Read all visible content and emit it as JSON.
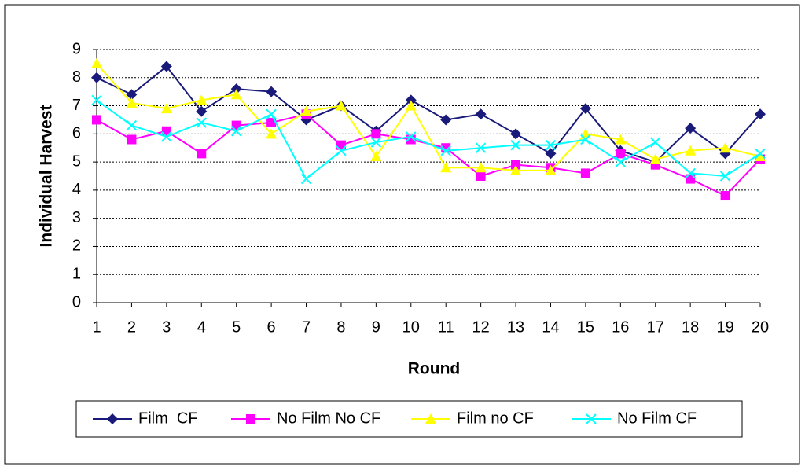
{
  "chart_data": {
    "type": "line",
    "x_label": "Round",
    "y_label": "Individual Harvest",
    "x": [
      1,
      2,
      3,
      4,
      5,
      6,
      7,
      8,
      9,
      10,
      11,
      12,
      13,
      14,
      15,
      16,
      17,
      18,
      19,
      20
    ],
    "xlim": [
      1,
      20
    ],
    "xticks": [
      1,
      2,
      3,
      4,
      5,
      6,
      7,
      8,
      9,
      10,
      11,
      12,
      13,
      14,
      15,
      16,
      17,
      18,
      19,
      20
    ],
    "ylim": [
      0,
      9
    ],
    "yticks": [
      0,
      1,
      2,
      3,
      4,
      5,
      6,
      7,
      8,
      9
    ],
    "grid": true,
    "legend": "bottom",
    "series": [
      {
        "name": "Film  CF",
        "color": "#1a1a7a",
        "marker": "diamond",
        "values": [
          8.0,
          7.4,
          8.4,
          6.8,
          7.6,
          7.5,
          6.5,
          7.0,
          6.1,
          7.2,
          6.5,
          6.7,
          6.0,
          5.3,
          6.9,
          5.4,
          5.0,
          6.2,
          5.3,
          6.7
        ]
      },
      {
        "name": "No Film No CF",
        "color": "#ff00ff",
        "marker": "square",
        "values": [
          6.5,
          5.8,
          6.1,
          5.3,
          6.3,
          6.4,
          6.7,
          5.6,
          6.0,
          5.8,
          5.5,
          4.5,
          4.9,
          4.8,
          4.6,
          5.3,
          4.9,
          4.4,
          3.8,
          5.1
        ]
      },
      {
        "name": "Film no CF",
        "color": "#ffff00",
        "marker": "triangle",
        "values": [
          8.5,
          7.1,
          6.9,
          7.2,
          7.4,
          6.0,
          6.8,
          7.0,
          5.2,
          7.0,
          4.8,
          4.8,
          4.7,
          4.7,
          6.0,
          5.8,
          5.1,
          5.4,
          5.5,
          5.2
        ]
      },
      {
        "name": "No Film CF",
        "color": "#00ffff",
        "marker": "x",
        "values": [
          7.2,
          6.3,
          5.9,
          6.4,
          6.1,
          6.7,
          4.4,
          5.4,
          5.7,
          5.9,
          5.4,
          5.5,
          5.6,
          5.6,
          5.8,
          5.0,
          5.7,
          4.6,
          4.5,
          5.3
        ]
      }
    ]
  }
}
